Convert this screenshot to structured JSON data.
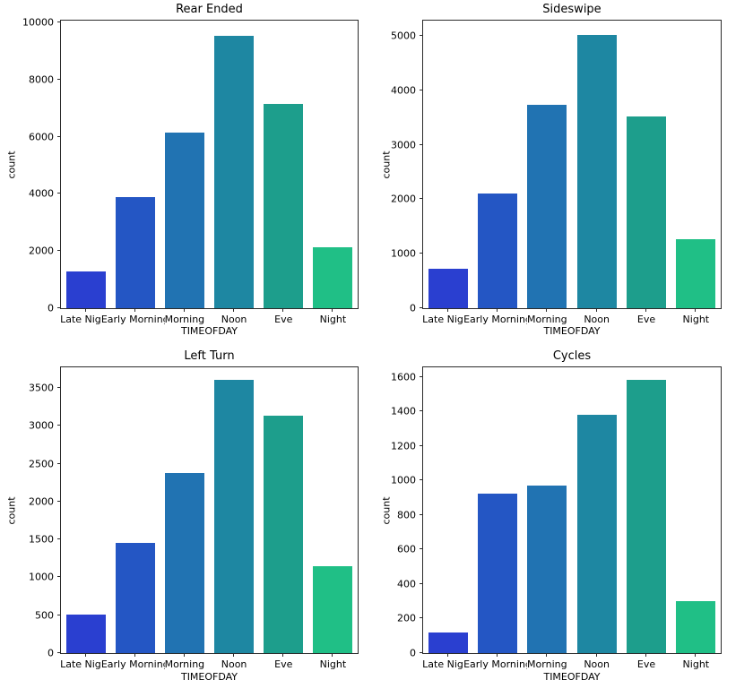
{
  "figure": {
    "background": "#ffffff",
    "spine_color": "#2b2b2b"
  },
  "palette": [
    "#2a3fd0",
    "#2456c4",
    "#2173b2",
    "#1e87a2",
    "#1d9e8c",
    "#20bf86"
  ],
  "categories": [
    "Late Night",
    "Early Morning",
    "Morning",
    "Noon",
    "Eve",
    "Night"
  ],
  "chart_data": [
    {
      "type": "bar",
      "title": "Rear Ended",
      "xlabel": "TIMEOFDAY",
      "ylabel": "count",
      "categories": [
        "Late Night",
        "Early Morning",
        "Morning",
        "Noon",
        "Eve",
        "Night"
      ],
      "values": [
        1270,
        3880,
        6130,
        9540,
        7150,
        2120
      ],
      "ylim": [
        0,
        10060
      ],
      "yticks": [
        0,
        2000,
        4000,
        6000,
        8000,
        10000
      ],
      "grid": false,
      "legend": "none",
      "bar_colors": [
        "#2a3fd0",
        "#2456c4",
        "#2173b2",
        "#1e87a2",
        "#1d9e8c",
        "#20bf86"
      ]
    },
    {
      "type": "bar",
      "title": "Sideswipe",
      "xlabel": "TIMEOFDAY",
      "ylabel": "count",
      "categories": [
        "Late Night",
        "Early Morning",
        "Morning",
        "Noon",
        "Eve",
        "Night"
      ],
      "values": [
        720,
        2110,
        3740,
        5020,
        3520,
        1270
      ],
      "ylim": [
        0,
        5283
      ],
      "yticks": [
        0,
        1000,
        2000,
        3000,
        4000,
        5000
      ],
      "grid": false,
      "legend": "none",
      "bar_colors": [
        "#2a3fd0",
        "#2456c4",
        "#2173b2",
        "#1e87a2",
        "#1d9e8c",
        "#20bf86"
      ]
    },
    {
      "type": "bar",
      "title": "Left Turn",
      "xlabel": "TIMEOFDAY",
      "ylabel": "count",
      "categories": [
        "Late Night",
        "Early Morning",
        "Morning",
        "Noon",
        "Eve",
        "Night"
      ],
      "values": [
        510,
        1450,
        2380,
        3610,
        3140,
        1150
      ],
      "ylim": [
        0,
        3774
      ],
      "yticks": [
        0,
        500,
        1000,
        1500,
        2000,
        2500,
        3000,
        3500
      ],
      "grid": false,
      "legend": "none",
      "bar_colors": [
        "#2a3fd0",
        "#2456c4",
        "#2173b2",
        "#1e87a2",
        "#1d9e8c",
        "#20bf86"
      ]
    },
    {
      "type": "bar",
      "title": "Cycles",
      "xlabel": "TIMEOFDAY",
      "ylabel": "count",
      "categories": [
        "Late Night",
        "Early Morning",
        "Morning",
        "Noon",
        "Eve",
        "Night"
      ],
      "values": [
        120,
        927,
        974,
        1384,
        1582,
        300
      ],
      "ylim": [
        0,
        1657
      ],
      "yticks": [
        0,
        200,
        400,
        600,
        800,
        1000,
        1200,
        1400,
        1600
      ],
      "grid": false,
      "legend": "none",
      "bar_colors": [
        "#2a3fd0",
        "#2456c4",
        "#2173b2",
        "#1e87a2",
        "#1d9e8c",
        "#20bf86"
      ]
    }
  ]
}
